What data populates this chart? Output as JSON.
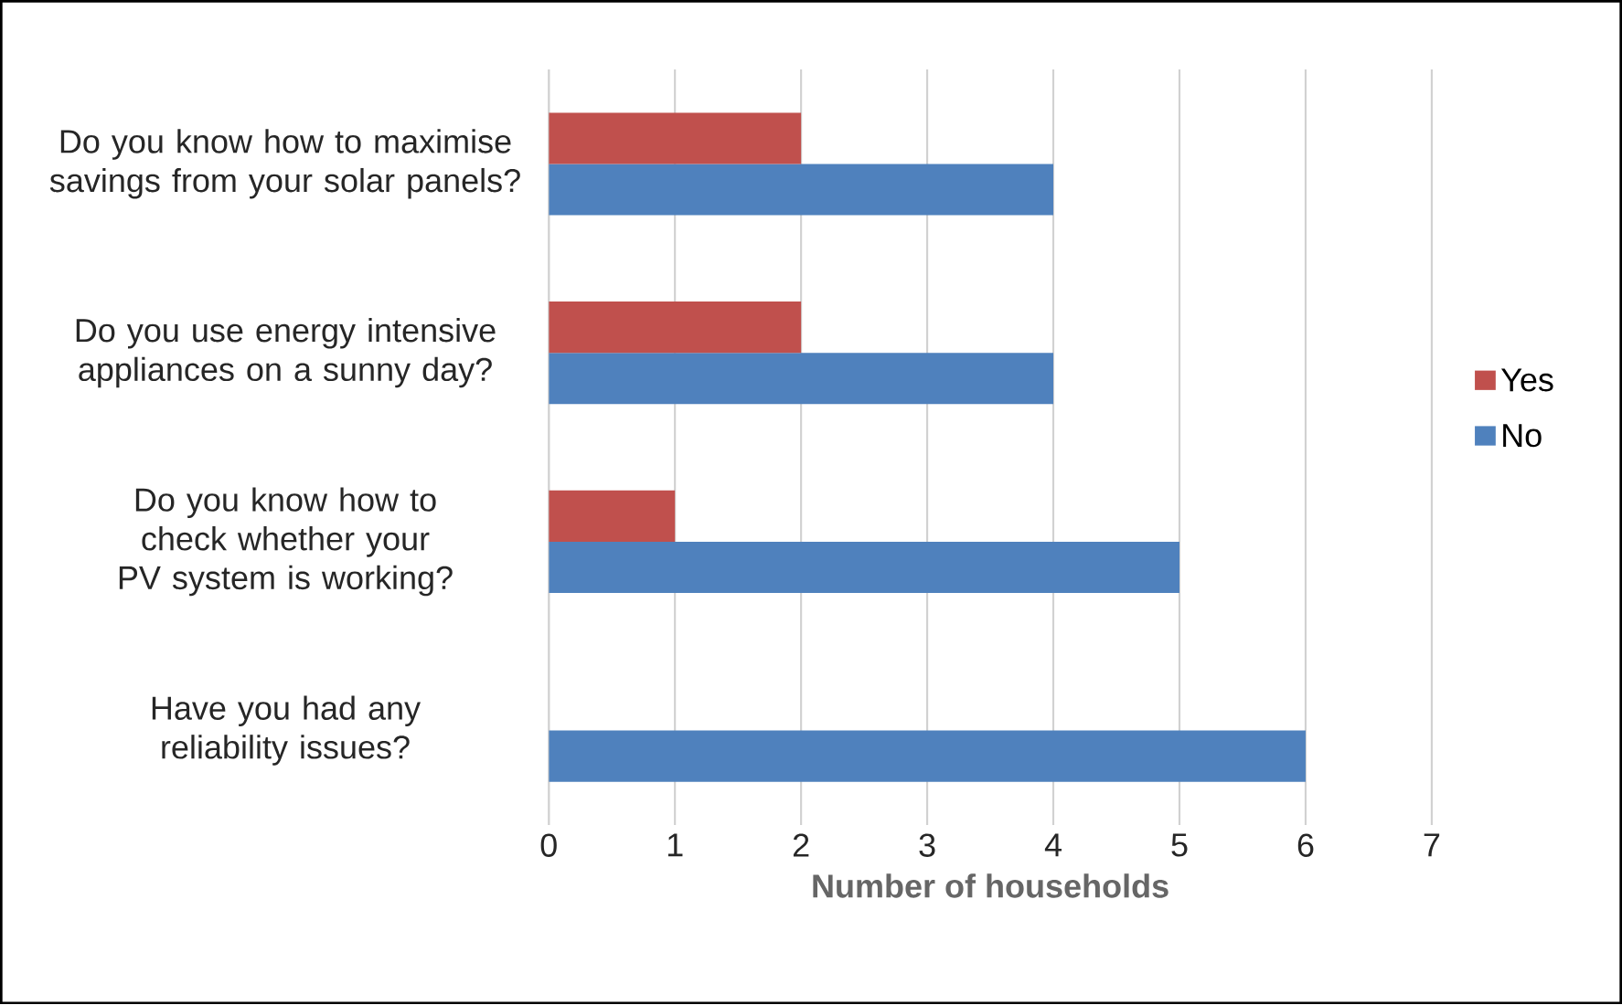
{
  "chart_data": {
    "type": "bar",
    "orientation": "horizontal",
    "categories": [
      "Do you know how to maximise savings from your solar panels?",
      "Do you use energy intensive appliances on a sunny day?",
      "Do you know how to check whether your PV system is working?",
      "Have you had any reliability issues?"
    ],
    "series": [
      {
        "name": "Yes",
        "color": "#c0504d",
        "values": [
          2,
          2,
          1,
          0
        ]
      },
      {
        "name": "No",
        "color": "#4f81bd",
        "values": [
          4,
          4,
          5,
          6
        ]
      }
    ],
    "xlabel": "Number of households",
    "xlim": [
      0,
      7
    ],
    "xticks": [
      0,
      1,
      2,
      3,
      4,
      5,
      6,
      7
    ],
    "grid": "x",
    "legend": "right"
  }
}
